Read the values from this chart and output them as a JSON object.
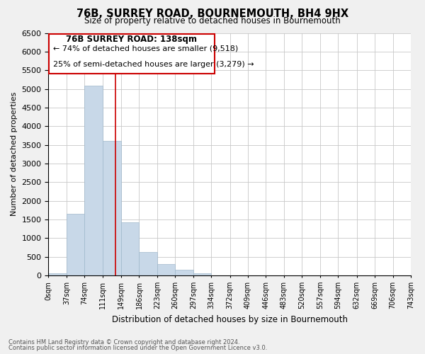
{
  "title": "76B, SURREY ROAD, BOURNEMOUTH, BH4 9HX",
  "subtitle": "Size of property relative to detached houses in Bournemouth",
  "xlabel": "Distribution of detached houses by size in Bournemouth",
  "ylabel": "Number of detached properties",
  "bar_edges": [
    0,
    37,
    74,
    111,
    149,
    186,
    223,
    260,
    297,
    334,
    372,
    409,
    446,
    483,
    520,
    557,
    594,
    632,
    669,
    706,
    743
  ],
  "bar_heights": [
    60,
    1650,
    5080,
    3600,
    1430,
    620,
    310,
    150,
    60,
    0,
    0,
    0,
    0,
    0,
    0,
    0,
    0,
    0,
    0,
    0
  ],
  "bar_color": "#c8d8e8",
  "bar_edge_color": "#a0b8cc",
  "vline_x": 138,
  "vline_color": "#cc0000",
  "ylim": [
    0,
    6500
  ],
  "yticks": [
    0,
    500,
    1000,
    1500,
    2000,
    2500,
    3000,
    3500,
    4000,
    4500,
    5000,
    5500,
    6000,
    6500
  ],
  "tick_labels": [
    "0sqm",
    "37sqm",
    "74sqm",
    "111sqm",
    "149sqm",
    "186sqm",
    "223sqm",
    "260sqm",
    "297sqm",
    "334sqm",
    "372sqm",
    "409sqm",
    "446sqm",
    "483sqm",
    "520sqm",
    "557sqm",
    "594sqm",
    "632sqm",
    "669sqm",
    "706sqm",
    "743sqm"
  ],
  "annotation_title": "76B SURREY ROAD: 138sqm",
  "annotation_line1": "← 74% of detached houses are smaller (9,518)",
  "annotation_line2": "25% of semi-detached houses are larger (3,279) →",
  "footer1": "Contains HM Land Registry data © Crown copyright and database right 2024.",
  "footer2": "Contains public sector information licensed under the Open Government Licence v3.0.",
  "bg_color": "#f0f0f0",
  "plot_bg_color": "#ffffff",
  "grid_color": "#c8c8c8"
}
